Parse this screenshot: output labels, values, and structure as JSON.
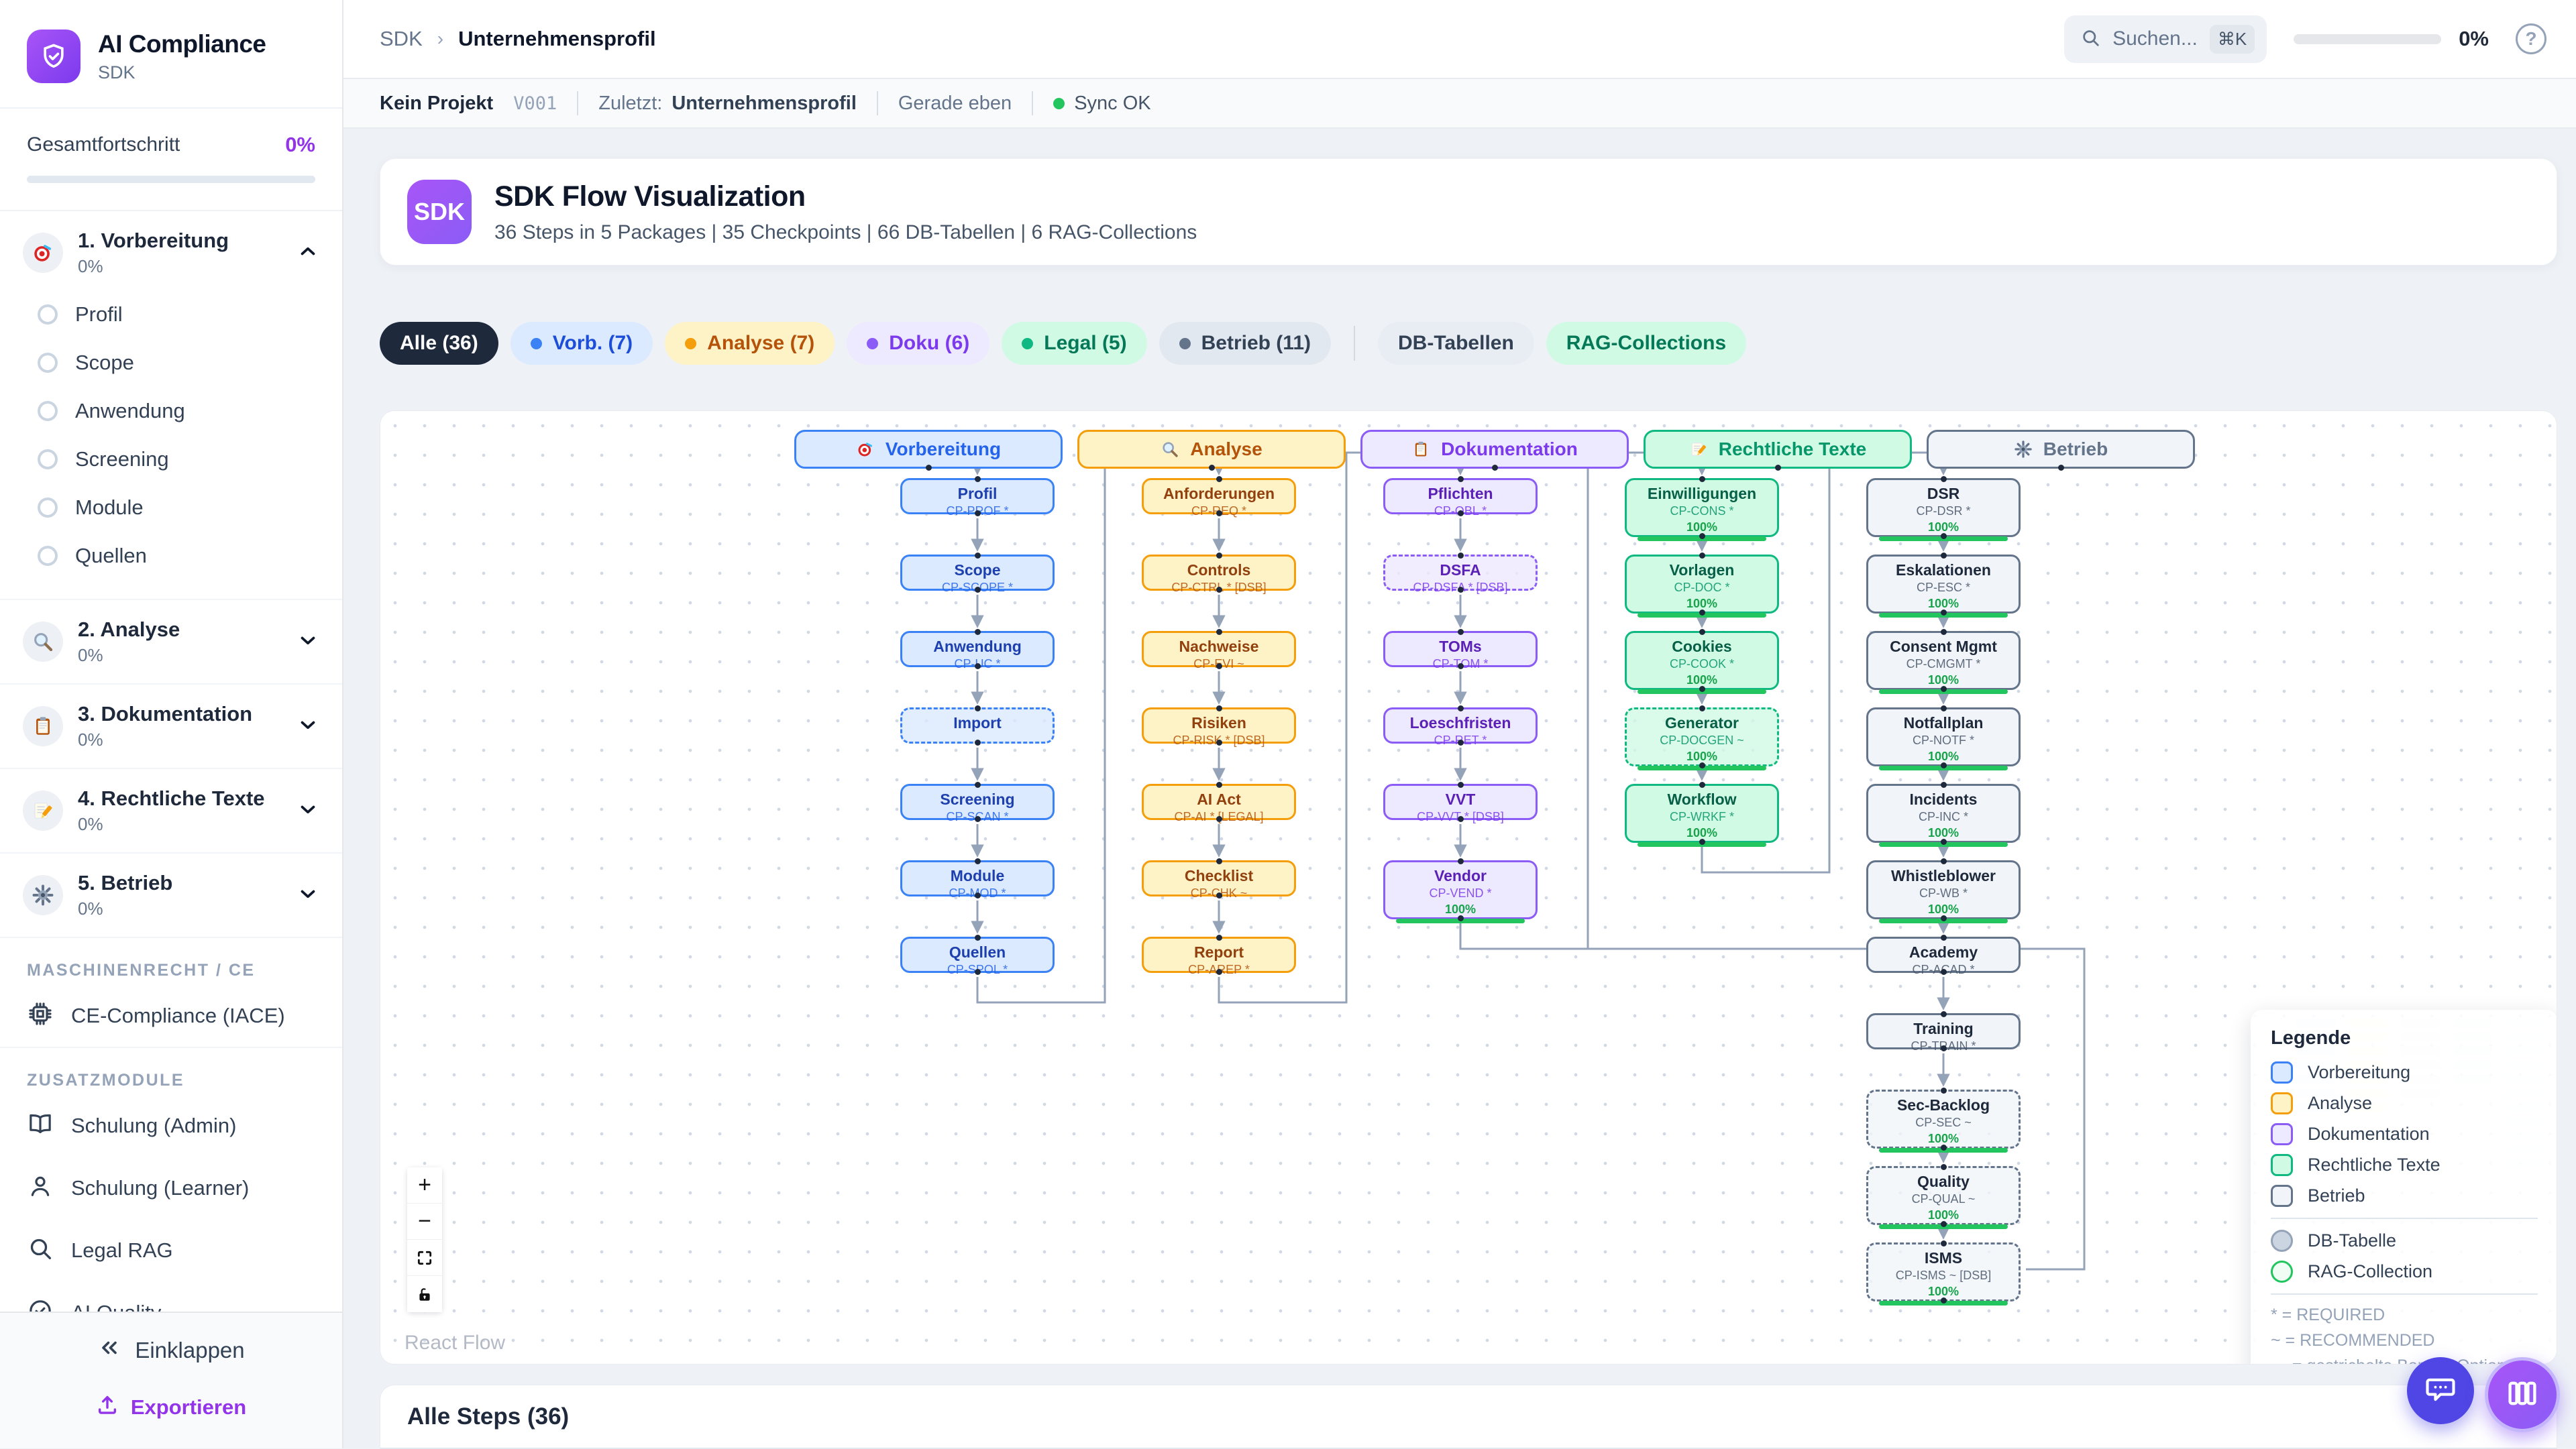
{
  "app": {
    "name": "AI Compliance",
    "subtitle": "SDK"
  },
  "colors": {
    "brand": "#8b5cf6",
    "accent": "#9333ea",
    "active_chip_bg": "#1e293b",
    "progress_green": "#22c55e",
    "sync_green": "#22c55e",
    "edge": "#94a3b8",
    "palette": {
      "vorbereitung": {
        "bg": "#dbeafe",
        "border": "#3b82f6",
        "title": "#1e40af",
        "code": "#2563eb",
        "headText": "#2563eb"
      },
      "analyse": {
        "bg": "#fef3c7",
        "border": "#f59e0b",
        "title": "#92400e",
        "code": "#b45309",
        "headText": "#b45309"
      },
      "doku": {
        "bg": "#ede9fe",
        "border": "#8b5cf6",
        "title": "#5b21b6",
        "code": "#7c3aed",
        "headText": "#7c3aed"
      },
      "legal": {
        "bg": "#d1fae5",
        "border": "#10b981",
        "title": "#065f46",
        "code": "#059669",
        "headText": "#059669"
      },
      "betrieb": {
        "bg": "#f1f5f9",
        "border": "#64748b",
        "title": "#1e293b",
        "code": "#475569",
        "headText": "#64748b"
      }
    }
  },
  "sidebar": {
    "overall": {
      "label": "Gesamtfortschritt",
      "value": "0%"
    },
    "phases": [
      {
        "label": "1. Vorbereitung",
        "percent": "0%",
        "icon": "target-icon",
        "expanded": true,
        "items": [
          "Profil",
          "Scope",
          "Anwendung",
          "Screening",
          "Module",
          "Quellen"
        ]
      },
      {
        "label": "2. Analyse",
        "percent": "0%",
        "icon": "magnifier-icon",
        "expanded": false,
        "items": []
      },
      {
        "label": "3. Dokumentation",
        "percent": "0%",
        "icon": "clipboard-icon",
        "expanded": false,
        "items": []
      },
      {
        "label": "4. Rechtliche Texte",
        "percent": "0%",
        "icon": "pencil-icon",
        "expanded": false,
        "items": []
      },
      {
        "label": "5. Betrieb",
        "percent": "0%",
        "icon": "gear-icon",
        "expanded": false,
        "items": []
      }
    ],
    "section_machine": {
      "label": "MASCHINENRECHT / CE",
      "items": [
        {
          "label": "CE-Compliance (IACE)",
          "icon": "cpu-icon"
        }
      ]
    },
    "section_addons": {
      "label": "ZUSATZMODULE",
      "items": [
        {
          "label": "Schulung (Admin)",
          "icon": "book-icon"
        },
        {
          "label": "Schulung (Learner)",
          "icon": "user-icon"
        },
        {
          "label": "Legal RAG",
          "icon": "search-icon"
        },
        {
          "label": "AI Quality",
          "icon": "check-circle-icon"
        }
      ]
    },
    "footer": {
      "collapse": "Einklappen",
      "export": "Exportieren"
    }
  },
  "header": {
    "breadcrumb": [
      "SDK",
      "Unternehmensprofil"
    ],
    "search": {
      "placeholder": "Suchen...",
      "shortcut": "⌘K"
    },
    "progress": "0%"
  },
  "statusbar": {
    "project": "Kein Projekt",
    "version": "V001",
    "last_label": "Zuletzt:",
    "last_value": "Unternehmensprofil",
    "time": "Gerade eben",
    "sync": "Sync OK"
  },
  "flowcard": {
    "badge": "SDK",
    "title": "SDK Flow Visualization",
    "subtitle": "36 Steps in 5 Packages | 35 Checkpoints | 66 DB-Tabellen | 6 RAG-Collections"
  },
  "filters": {
    "chips": [
      {
        "label": "Alle (36)",
        "key": "all",
        "active": true
      },
      {
        "label": "Vorb. (7)",
        "key": "vorbereitung",
        "dot": "#3b82f6",
        "bg": "#dbeafe",
        "fg": "#1d4ed8"
      },
      {
        "label": "Analyse (7)",
        "key": "analyse",
        "dot": "#f59e0b",
        "bg": "#fef3c7",
        "fg": "#b45309"
      },
      {
        "label": "Doku (6)",
        "key": "doku",
        "dot": "#8b5cf6",
        "bg": "#ede9fe",
        "fg": "#7c3aed"
      },
      {
        "label": "Legal (5)",
        "key": "legal",
        "dot": "#10b981",
        "bg": "#d1fae5",
        "fg": "#047857"
      },
      {
        "label": "Betrieb (11)",
        "key": "betrieb",
        "dot": "#64748b",
        "bg": "#e2e8f0",
        "fg": "#334155"
      }
    ],
    "extra_chips": [
      {
        "label": "DB-Tabellen",
        "key": "db",
        "bg": "#e8edf3",
        "fg": "#334155"
      },
      {
        "label": "RAG-Collections",
        "key": "rag",
        "bg": "#d1fae5",
        "fg": "#047857"
      }
    ]
  },
  "flow": {
    "packages": [
      {
        "key": "vorbereitung",
        "label": "Vorbereitung",
        "icon": "target-icon",
        "nodes": [
          {
            "title": "Profil",
            "code": "CP-PROF *"
          },
          {
            "title": "Scope",
            "code": "CP-SCOPE *"
          },
          {
            "title": "Anwendung",
            "code": "CP-UC *"
          },
          {
            "title": "Import",
            "code": "",
            "dashed": true
          },
          {
            "title": "Screening",
            "code": "CP-SCAN *"
          },
          {
            "title": "Module",
            "code": "CP-MOD *"
          },
          {
            "title": "Quellen",
            "code": "CP-SPOL *"
          }
        ]
      },
      {
        "key": "analyse",
        "label": "Analyse",
        "icon": "magnifier-icon",
        "nodes": [
          {
            "title": "Anforderungen",
            "code": "CP-REQ *"
          },
          {
            "title": "Controls",
            "code": "CP-CTRL * [DSB]"
          },
          {
            "title": "Nachweise",
            "code": "CP-EVI ~"
          },
          {
            "title": "Risiken",
            "code": "CP-RISK * [DSB]"
          },
          {
            "title": "AI Act",
            "code": "CP-AI * [LEGAL]"
          },
          {
            "title": "Checklist",
            "code": "CP-CHK ~"
          },
          {
            "title": "Report",
            "code": "CP-AREP *"
          }
        ]
      },
      {
        "key": "doku",
        "label": "Dokumentation",
        "icon": "clipboard-icon",
        "nodes": [
          {
            "title": "Pflichten",
            "code": "CP-OBL *"
          },
          {
            "title": "DSFA",
            "code": "CP-DSFA * [DSB]",
            "dashed": true
          },
          {
            "title": "TOMs",
            "code": "CP-TOM *"
          },
          {
            "title": "Loeschfristen",
            "code": "CP-RET *"
          },
          {
            "title": "VVT",
            "code": "CP-VVT * [DSB]"
          },
          {
            "title": "Vendor",
            "code": "CP-VEND *",
            "progress": "100%"
          }
        ]
      },
      {
        "key": "legal",
        "label": "Rechtliche Texte",
        "icon": "pencil-icon",
        "nodes": [
          {
            "title": "Einwilligungen",
            "code": "CP-CONS *",
            "progress": "100%"
          },
          {
            "title": "Vorlagen",
            "code": "CP-DOC *",
            "progress": "100%"
          },
          {
            "title": "Cookies",
            "code": "CP-COOK *",
            "progress": "100%"
          },
          {
            "title": "Generator",
            "code": "CP-DOCGEN ~",
            "progress": "100%",
            "dashed": true
          },
          {
            "title": "Workflow",
            "code": "CP-WRKF *",
            "progress": "100%"
          }
        ]
      },
      {
        "key": "betrieb",
        "label": "Betrieb",
        "icon": "gear-icon",
        "nodes": [
          {
            "title": "DSR",
            "code": "CP-DSR *",
            "progress": "100%"
          },
          {
            "title": "Eskalationen",
            "code": "CP-ESC *",
            "progress": "100%"
          },
          {
            "title": "Consent Mgmt",
            "code": "CP-CMGMT *",
            "progress": "100%"
          },
          {
            "title": "Notfallplan",
            "code": "CP-NOTF *",
            "progress": "100%"
          },
          {
            "title": "Incidents",
            "code": "CP-INC *",
            "progress": "100%"
          },
          {
            "title": "Whistleblower",
            "code": "CP-WB *",
            "progress": "100%"
          },
          {
            "title": "Academy",
            "code": "CP-ACAD *"
          },
          {
            "title": "Training",
            "code": "CP-TRAIN *"
          },
          {
            "title": "Sec-Backlog",
            "code": "CP-SEC ~",
            "progress": "100%",
            "dashed": true
          },
          {
            "title": "Quality",
            "code": "CP-QUAL ~",
            "progress": "100%",
            "dashed": true
          },
          {
            "title": "ISMS",
            "code": "CP-ISMS ~ [DSB]",
            "progress": "100%",
            "dashed": true
          }
        ]
      }
    ]
  },
  "legend": {
    "title": "Legende",
    "package_items": [
      {
        "label": "Vorbereitung",
        "key": "vorbereitung"
      },
      {
        "label": "Analyse",
        "key": "analyse"
      },
      {
        "label": "Dokumentation",
        "key": "doku"
      },
      {
        "label": "Rechtliche Texte",
        "key": "legal"
      },
      {
        "label": "Betrieb",
        "key": "betrieb"
      }
    ],
    "shape_items": [
      {
        "label": "DB-Tabelle",
        "border": "#94a3b8",
        "fill": "#cbd5e1"
      },
      {
        "label": "RAG-Collection",
        "border": "#22c55e",
        "fill": "#f0fdf4"
      }
    ],
    "notes": [
      "* = REQUIRED",
      "~ = RECOMMENDED",
      "--- = gestrichelte Border: Optional"
    ]
  },
  "canvas": {
    "attribution": "React Flow"
  },
  "bottom": {
    "title": "Alle Steps (36)"
  }
}
